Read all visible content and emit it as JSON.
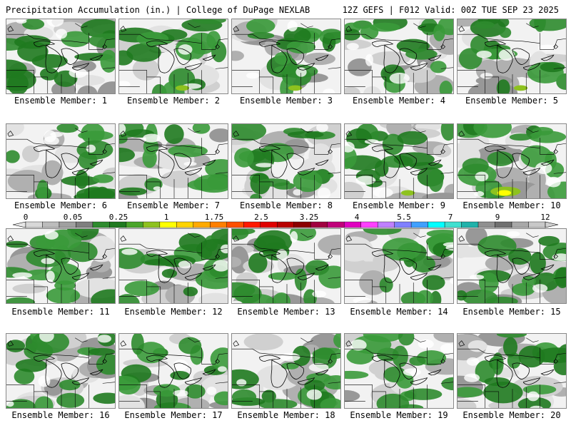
{
  "header": {
    "left": "Precipitation Accumulation (in.) | College of DuPage NEXLAB",
    "right": "12Z GEFS | F012 Valid: 00Z TUE SEP 23 2025"
  },
  "panels": [
    {
      "label": "Ensemble Member: 1"
    },
    {
      "label": "Ensemble Member: 2"
    },
    {
      "label": "Ensemble Member: 3"
    },
    {
      "label": "Ensemble Member: 4"
    },
    {
      "label": "Ensemble Member: 5"
    },
    {
      "label": "Ensemble Member: 6"
    },
    {
      "label": "Ensemble Member: 7"
    },
    {
      "label": "Ensemble Member: 8"
    },
    {
      "label": "Ensemble Member: 9"
    },
    {
      "label": "Ensemble Member: 10"
    },
    {
      "label": "Ensemble Member: 11"
    },
    {
      "label": "Ensemble Member: 12"
    },
    {
      "label": "Ensemble Member: 13"
    },
    {
      "label": "Ensemble Member: 14"
    },
    {
      "label": "Ensemble Member: 15"
    },
    {
      "label": "Ensemble Member: 16"
    },
    {
      "label": "Ensemble Member: 17"
    },
    {
      "label": "Ensemble Member: 18"
    },
    {
      "label": "Ensemble Member: 19"
    },
    {
      "label": "Ensemble Member: 20"
    }
  ],
  "colorbar": {
    "labels": [
      "0",
      "0.05",
      "0.25",
      "1",
      "1.75",
      "2.5",
      "3.25",
      "4",
      "5.5",
      "7",
      "9",
      "12"
    ],
    "colors": [
      "#d8d8d8",
      "#bcbcbc",
      "#a0a0a0",
      "#7f7f7f",
      "#2e8b2e",
      "#1f7a1f",
      "#4aa52a",
      "#8ec21f",
      "#ffff00",
      "#ffd400",
      "#ffaa00",
      "#ff7f00",
      "#ff4f00",
      "#ff1a00",
      "#e00000",
      "#b80000",
      "#8b0000",
      "#a00040",
      "#c0007a",
      "#e000c0",
      "#ff40ff",
      "#c080ff",
      "#8080ff",
      "#40a0ff",
      "#00ffff",
      "#40e0d0",
      "#20b2aa",
      "#909090",
      "#707070",
      "#a8a8a8",
      "#c8c8c8"
    ]
  }
}
